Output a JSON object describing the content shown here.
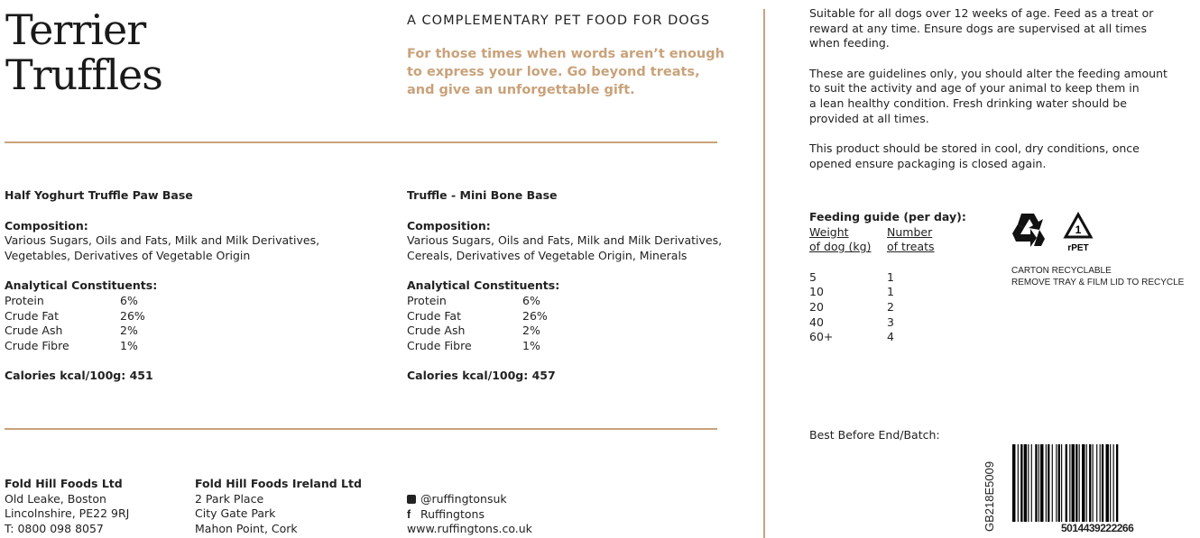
{
  "header": {
    "title_line1": "Terrier",
    "title_line2": "Truffles",
    "subtitle": "A COMPLEMENTARY PET FOOD FOR DOGS",
    "tagline": [
      "For those times when words aren’t enough",
      "to express your love. Go beyond treats,",
      "and give an unforgettable gift."
    ]
  },
  "products": [
    {
      "name": "Half Yoghurt Truffle Paw Base",
      "composition_label": "Composition:",
      "composition": [
        "Various Sugars, Oils and Fats, Milk and Milk Derivatives,",
        "Vegetables, Derivatives of Vegetable Origin"
      ],
      "analytical_label": "Analytical Constituents:",
      "constituents": [
        {
          "name": "Protein",
          "value": "6%"
        },
        {
          "name": "Crude Fat",
          "value": "26%"
        },
        {
          "name": "Crude Ash",
          "value": "2%"
        },
        {
          "name": "Crude Fibre",
          "value": "1%"
        }
      ],
      "calories_label": "Calories kcal/100g:",
      "calories": "451"
    },
    {
      "name": "Truffle - Mini Bone Base",
      "composition_label": "Composition:",
      "composition": [
        "Various Sugars, Oils and Fats, Milk and Milk Derivatives,",
        "Cereals, Derivatives of Vegetable Origin, Minerals"
      ],
      "analytical_label": "Analytical Constituents:",
      "constituents": [
        {
          "name": "Protein",
          "value": "6%"
        },
        {
          "name": "Crude Fat",
          "value": "26%"
        },
        {
          "name": "Crude Ash",
          "value": "2%"
        },
        {
          "name": "Crude Fibre",
          "value": "1%"
        }
      ],
      "calories_label": "Calories kcal/100g:",
      "calories": "457"
    }
  ],
  "footer": {
    "uk": {
      "name": "Fold Hill Foods Ltd",
      "lines": [
        "Old Leake, Boston",
        "Lincolnshire, PE22 9RJ",
        "T: 0800 098 8057"
      ]
    },
    "ireland": {
      "name": "Fold Hill Foods Ireland Ltd",
      "lines": [
        "2 Park Place",
        "City Gate Park",
        "Mahon Point, Cork"
      ]
    },
    "social": {
      "instagram_icon": "instagram-icon",
      "instagram": "@ruffingtonsuk",
      "facebook_icon": "facebook-icon",
      "facebook": "Ruffingtons",
      "website": "www.ruffingtons.co.uk"
    }
  },
  "instructions": [
    [
      "Suitable for all dogs over 12 weeks of age. Feed as a treat or",
      "reward at any time. Ensure dogs are supervised at all times",
      "when feeding."
    ],
    [
      "These are guidelines only, you should alter the feeding amount",
      "to suit the activity and age of your animal to keep them in",
      "a lean healthy condition. Fresh drinking water should be",
      "provided at all times."
    ],
    [
      "This product should be stored in cool, dry conditions, once",
      "opened ensure packaging is closed again."
    ]
  ],
  "feeding_guide": {
    "title": "Feeding guide (per day):",
    "col1": [
      "Weight",
      "of dog (kg)"
    ],
    "col2": [
      "Number",
      "of treats"
    ],
    "rows": [
      {
        "weight": "5",
        "treats": "1"
      },
      {
        "weight": "10",
        "treats": "1"
      },
      {
        "weight": "20",
        "treats": "2"
      },
      {
        "weight": "40",
        "treats": "3"
      },
      {
        "weight": "60+",
        "treats": "4"
      }
    ]
  },
  "recycling": {
    "icons": [
      "recycle-icon",
      "rpet-1-icon"
    ],
    "rpet_label": "rPET",
    "rpet_number": "1",
    "lines": [
      "CARTON RECYCLABLE",
      "REMOVE TRAY & FILM LID TO RECYCLE"
    ]
  },
  "best_before": "Best Before End/Batch:",
  "batch_code": "GB218E5009",
  "barcode_number": "5014439222266",
  "colors": {
    "accent": "#c9a27a",
    "text": "#222222"
  }
}
